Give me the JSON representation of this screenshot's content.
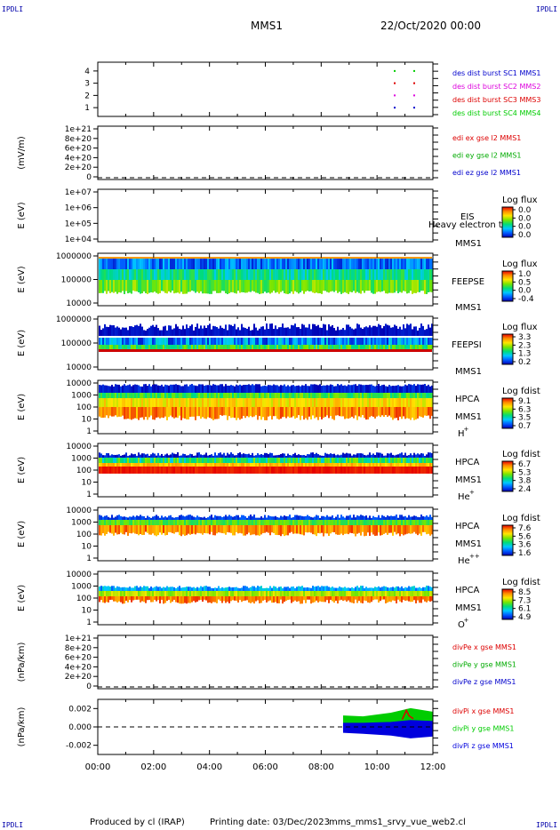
{
  "header": {
    "corner_tl": "IPDLI",
    "corner_tr": "IPDLI",
    "corner_bl": "IPDLI",
    "corner_br": "IPDLI",
    "title": "MMS1",
    "datetime": "22/Oct/2020 00:00"
  },
  "footer": {
    "produced_by": "Produced by cl (IRAP)",
    "printing_date": "Printing date: 03/Dec/2023",
    "filename": "mms_mms1_srvy_vue_web2.cl"
  },
  "colors": {
    "blue": "#0000cc",
    "magenta": "#dd00dd",
    "red": "#dd0000",
    "green": "#00cc00"
  },
  "chart_data": [
    {
      "panel": "burst-flags",
      "type": "scatter",
      "ylim": [
        0.5,
        4.5
      ],
      "y_ticks": [
        "1",
        "2",
        "3",
        "4"
      ],
      "series": [
        {
          "name": "des dist burst SC1 MMS1",
          "color": "#0000cc",
          "y": 1,
          "x_hours": [
            10.6,
            11.3
          ]
        },
        {
          "name": "des dist burst SC2 MMS2",
          "color": "#dd00dd",
          "y": 2,
          "x_hours": [
            10.6,
            11.3
          ]
        },
        {
          "name": "des dist burst SC3 MMS3",
          "color": "#dd0000",
          "y": 3,
          "x_hours": [
            10.6,
            11.3
          ]
        },
        {
          "name": "des dist burst SC4 MMS4",
          "color": "#00cc00",
          "y": 4,
          "x_hours": [
            10.6,
            11.3
          ]
        }
      ]
    },
    {
      "panel": "edi-efield",
      "type": "line",
      "ylabel": "(mV/m)",
      "y_ticks": [
        "1e+21",
        "8e+20",
        "6e+20",
        "4e+20",
        "2e+20",
        "0"
      ],
      "series": [
        {
          "name": "edi ex gse l2 MMS1",
          "color": "#dd0000"
        },
        {
          "name": "edi ey gse l2 MMS1",
          "color": "#00aa00"
        },
        {
          "name": "edi ez gse l2 MMS1",
          "color": "#0000cc"
        }
      ],
      "zero_line": true
    },
    {
      "panel": "eis",
      "type": "heatmap",
      "ylabel": "E (eV)",
      "y_ticks": [
        "1e+07",
        "1e+06",
        "1e+05",
        "1e+04"
      ],
      "labels": [
        "EIS",
        "MMS1"
      ],
      "overlay_text": "Heavy electron to",
      "colorbar": {
        "title": "Log flux",
        "ticks": [
          "0.0",
          "0.0",
          "0.0",
          "0.0"
        ]
      }
    },
    {
      "panel": "feeps-electron",
      "type": "heatmap",
      "ylabel": "E (eV)",
      "y_ticks": [
        "1000000",
        "100000",
        "10000"
      ],
      "labels": [
        "FEEPSE",
        "MMS1"
      ],
      "colorbar": {
        "title": "Log flux",
        "ticks": [
          "1.0",
          "0.5",
          "0.0",
          "-0.4"
        ]
      }
    },
    {
      "panel": "feeps-ion",
      "type": "heatmap",
      "ylabel": "E (eV)",
      "y_ticks": [
        "1000000",
        "100000",
        "10000"
      ],
      "labels": [
        "FEEPSI",
        "MMS1"
      ],
      "colorbar": {
        "title": "Log flux",
        "ticks": [
          "3.3",
          "2.3",
          "1.3",
          "0.2"
        ]
      }
    },
    {
      "panel": "hpca-h",
      "type": "heatmap",
      "ylabel": "E (eV)",
      "y_ticks": [
        "10000",
        "1000",
        "100",
        "10",
        "1"
      ],
      "labels": [
        "HPCA",
        "MMS1",
        "H",
        "+"
      ],
      "colorbar": {
        "title": "Log fdist",
        "ticks": [
          "9.1",
          "6.3",
          "3.5",
          "0.7"
        ]
      }
    },
    {
      "panel": "hpca-he",
      "type": "heatmap",
      "ylabel": "E (eV)",
      "y_ticks": [
        "10000",
        "1000",
        "100",
        "10",
        "1"
      ],
      "labels": [
        "HPCA",
        "MMS1",
        "He",
        "+"
      ],
      "colorbar": {
        "title": "Log fdist",
        "ticks": [
          "6.7",
          "5.3",
          "3.8",
          "2.4"
        ]
      }
    },
    {
      "panel": "hpca-hepp",
      "type": "heatmap",
      "ylabel": "E (eV)",
      "y_ticks": [
        "10000",
        "1000",
        "100",
        "10",
        "1"
      ],
      "labels": [
        "HPCA",
        "MMS1",
        "He",
        "++"
      ],
      "colorbar": {
        "title": "Log fdist",
        "ticks": [
          "7.6",
          "5.6",
          "3.6",
          "1.6"
        ]
      }
    },
    {
      "panel": "hpca-o",
      "type": "heatmap",
      "ylabel": "E (eV)",
      "y_ticks": [
        "10000",
        "1000",
        "100",
        "10",
        "1"
      ],
      "labels": [
        "HPCA",
        "MMS1",
        "O",
        "+"
      ],
      "colorbar": {
        "title": "Log fdist",
        "ticks": [
          "8.5",
          "7.3",
          "6.1",
          "4.9"
        ]
      }
    },
    {
      "panel": "divpe",
      "type": "line",
      "ylabel": "(nPa/km)",
      "y_ticks": [
        "1e+21",
        "8e+20",
        "6e+20",
        "4e+20",
        "2e+20",
        "0"
      ],
      "series": [
        {
          "name": "divPe x gse MMS1",
          "color": "#dd0000"
        },
        {
          "name": "divPe y gse MMS1",
          "color": "#00aa00"
        },
        {
          "name": "divPe z gse MMS1",
          "color": "#0000cc"
        }
      ],
      "zero_line": true
    },
    {
      "panel": "divpi",
      "type": "line",
      "ylabel": "(nPa/km)",
      "ylim": [
        -0.003,
        0.003
      ],
      "y_ticks": [
        "0.002",
        "0.000",
        "-0.002"
      ],
      "y_tick_values": [
        0.002,
        0.0,
        -0.002
      ],
      "series": [
        {
          "name": "divPi x gse MMS1",
          "color": "#dd0000",
          "x_hours": [
            10.9,
            11.05,
            11.15,
            11.3
          ],
          "y": [
            0.0008,
            0.0018,
            0.0012,
            0.0009
          ]
        },
        {
          "name": "divPi y gse MMS1",
          "color": "#00cc00",
          "x_hours": [
            8.8,
            9.5,
            10.5,
            11.2,
            12.0
          ],
          "y_upper": [
            0.0012,
            0.0011,
            0.0015,
            0.002,
            0.0016
          ],
          "y_lower": [
            -0.0002,
            -0.0003,
            -0.0004,
            -0.0006,
            -0.0005
          ]
        },
        {
          "name": "divPi z gse MMS1",
          "color": "#0000dd",
          "x_hours": [
            8.8,
            9.5,
            10.5,
            11.2,
            12.0
          ],
          "y_upper": [
            0.0004,
            0.0004,
            0.0005,
            0.0007,
            0.0006
          ],
          "y_lower": [
            -0.0006,
            -0.0007,
            -0.0009,
            -0.0012,
            -0.001
          ]
        }
      ],
      "zero_line": true
    }
  ],
  "x_axis": {
    "ticks": [
      "00:00",
      "02:00",
      "04:00",
      "06:00",
      "08:00",
      "10:00",
      "12:00"
    ],
    "range_hours": [
      0,
      12
    ]
  }
}
